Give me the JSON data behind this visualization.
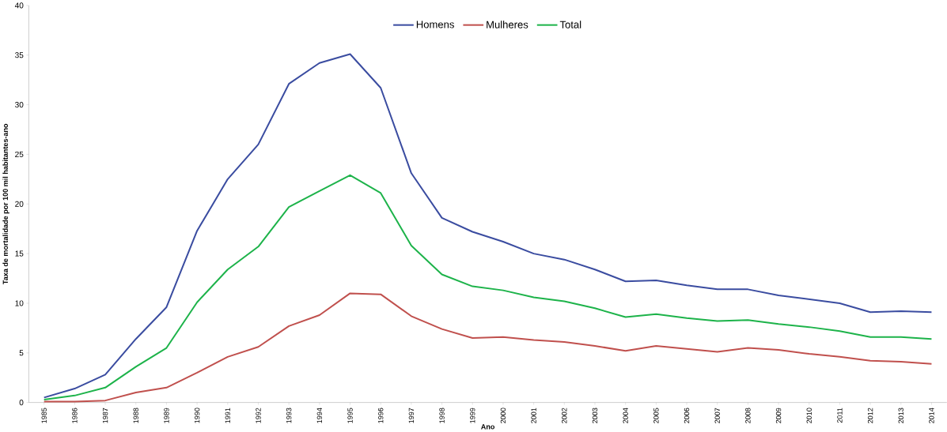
{
  "chart_data": {
    "type": "line",
    "xlabel": "Ano",
    "ylabel": "Taxa de mortalidade por 100 mil habitantes-ano",
    "categories": [
      "1985",
      "1986",
      "1987",
      "1988",
      "1989",
      "1990",
      "1991",
      "1992",
      "1993",
      "1994",
      "1995",
      "1996",
      "1997",
      "1998",
      "1999",
      "2000",
      "2001",
      "2002",
      "2003",
      "2004",
      "2005",
      "2006",
      "2007",
      "2008",
      "2009",
      "2010",
      "2011",
      "2012",
      "2013",
      "2014"
    ],
    "series": [
      {
        "name": "Homens",
        "color": "#3a4ca0",
        "values": [
          0.5,
          1.4,
          2.8,
          6.4,
          9.6,
          17.3,
          22.5,
          26.0,
          32.1,
          34.2,
          35.1,
          31.7,
          23.1,
          18.6,
          17.2,
          16.2,
          15.0,
          14.4,
          13.4,
          12.2,
          12.3,
          11.8,
          11.4,
          11.4,
          10.8,
          10.4,
          10.0,
          9.1,
          9.2,
          9.1
        ]
      },
      {
        "name": "Mulheres",
        "color": "#c0504d",
        "values": [
          0.1,
          0.1,
          0.2,
          1.0,
          1.5,
          3.0,
          4.6,
          5.6,
          7.7,
          8.8,
          11.0,
          10.9,
          8.7,
          7.4,
          6.5,
          6.6,
          6.3,
          6.1,
          5.7,
          5.2,
          5.7,
          5.4,
          5.1,
          5.5,
          5.3,
          4.9,
          4.6,
          4.2,
          4.1,
          3.9
        ]
      },
      {
        "name": "Total",
        "color": "#1db34a",
        "values": [
          0.3,
          0.7,
          1.5,
          3.6,
          5.5,
          10.1,
          13.4,
          15.7,
          19.7,
          21.3,
          22.9,
          21.1,
          15.8,
          12.9,
          11.7,
          11.3,
          10.6,
          10.2,
          9.5,
          8.6,
          8.9,
          8.5,
          8.2,
          8.3,
          7.9,
          7.6,
          7.2,
          6.6,
          6.6,
          6.4
        ]
      }
    ],
    "ylim": [
      0,
      40
    ],
    "yticks": [
      0,
      5,
      10,
      15,
      20,
      25,
      30,
      35,
      40
    ],
    "grid": false,
    "legend": "top",
    "marker": "none",
    "line_style": "solid"
  }
}
